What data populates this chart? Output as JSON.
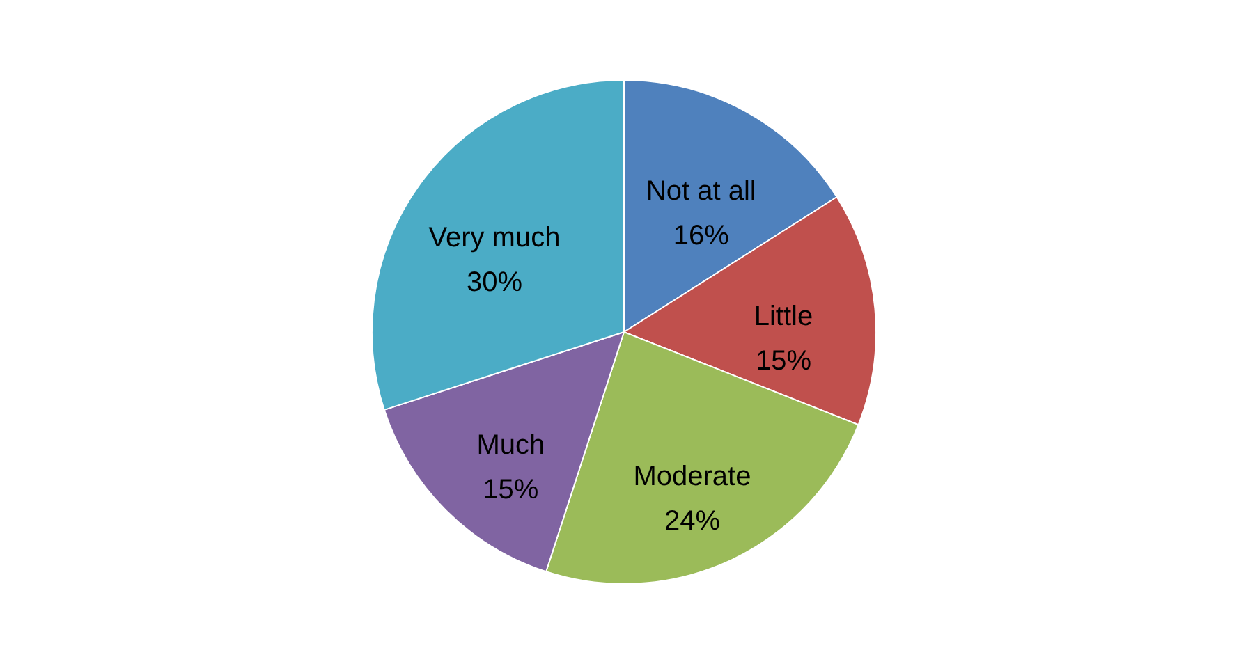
{
  "chart_data": {
    "type": "pie",
    "categories": [
      "Not at all",
      "Little",
      "Moderate",
      "Much",
      "Very much"
    ],
    "values": [
      16,
      15,
      24,
      15,
      30
    ],
    "value_labels": [
      "16%",
      "15%",
      "24%",
      "15%",
      "30%"
    ],
    "colors": [
      "#4f81bd",
      "#c0504d",
      "#9bbb59",
      "#8064a2",
      "#4bacc6"
    ]
  }
}
